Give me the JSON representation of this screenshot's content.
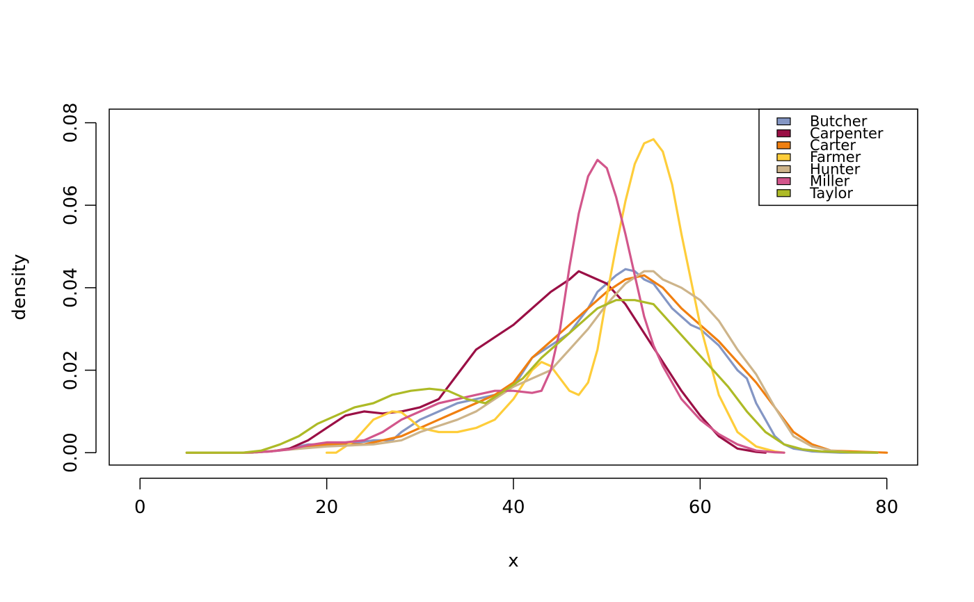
{
  "chart_data": {
    "type": "line",
    "title": "",
    "xlabel": "x",
    "ylabel": "density",
    "xlim": [
      -3.3,
      83.3
    ],
    "ylim": [
      -0.003,
      0.0833
    ],
    "x_ticks": [
      0,
      20,
      40,
      60,
      80
    ],
    "x_tick_labels": [
      "0",
      "20",
      "40",
      "60",
      "80"
    ],
    "y_ticks": [
      0.0,
      0.02,
      0.04,
      0.06,
      0.08
    ],
    "y_tick_labels": [
      "0.00",
      "0.02",
      "0.04",
      "0.06",
      "0.08"
    ],
    "grid": false,
    "legend_position": "top-right",
    "series": [
      {
        "name": "Butcher",
        "color": "#8496C4",
        "x": [
          5,
          12,
          15,
          18,
          20,
          22,
          25,
          27,
          28,
          30,
          32,
          34,
          36,
          38,
          40,
          42,
          44,
          46,
          48,
          49,
          50,
          51,
          52,
          53,
          54,
          55,
          56,
          57,
          58,
          59,
          60,
          61,
          62,
          63,
          64,
          65,
          66,
          67,
          68,
          69,
          70,
          72,
          75,
          79
        ],
        "y": [
          0,
          0,
          0.0005,
          0.002,
          0.002,
          0.002,
          0.003,
          0.003,
          0.005,
          0.008,
          0.01,
          0.012,
          0.013,
          0.014,
          0.016,
          0.023,
          0.026,
          0.029,
          0.035,
          0.039,
          0.041,
          0.043,
          0.0445,
          0.044,
          0.042,
          0.041,
          0.038,
          0.035,
          0.033,
          0.031,
          0.03,
          0.028,
          0.026,
          0.023,
          0.02,
          0.018,
          0.012,
          0.008,
          0.004,
          0.002,
          0.001,
          0.0003,
          0,
          0
        ]
      },
      {
        "name": "Carpenter",
        "color": "#9A0F45",
        "x": [
          5,
          11,
          14,
          16,
          18,
          20,
          22,
          24,
          26,
          28,
          30,
          32,
          34,
          36,
          38,
          40,
          42,
          44,
          46,
          47,
          48,
          50,
          52,
          54,
          56,
          58,
          60,
          62,
          64,
          66,
          67
        ],
        "y": [
          0,
          0,
          0.0003,
          0.001,
          0.003,
          0.006,
          0.009,
          0.01,
          0.0095,
          0.01,
          0.011,
          0.013,
          0.019,
          0.025,
          0.028,
          0.031,
          0.035,
          0.039,
          0.042,
          0.044,
          0.043,
          0.041,
          0.036,
          0.029,
          0.022,
          0.015,
          0.009,
          0.004,
          0.001,
          0.0002,
          0
        ]
      },
      {
        "name": "Carter",
        "color": "#F07F10",
        "x": [
          5,
          12,
          17,
          20,
          24,
          26,
          28,
          30,
          32,
          34,
          36,
          38,
          40,
          42,
          44,
          46,
          48,
          50,
          52,
          54,
          56,
          58,
          60,
          62,
          64,
          66,
          68,
          70,
          72,
          74,
          80
        ],
        "y": [
          0,
          0,
          0.001,
          0.002,
          0.002,
          0.003,
          0.004,
          0.006,
          0.008,
          0.01,
          0.012,
          0.014,
          0.017,
          0.023,
          0.027,
          0.031,
          0.035,
          0.039,
          0.042,
          0.043,
          0.04,
          0.035,
          0.031,
          0.027,
          0.022,
          0.017,
          0.011,
          0.005,
          0.002,
          0.0005,
          0
        ]
      },
      {
        "name": "Farmer",
        "color": "#FECD3A",
        "x": [
          20,
          21,
          23,
          25,
          27,
          28,
          29,
          30,
          32,
          34,
          36,
          38,
          40,
          42,
          43,
          44,
          45,
          46,
          47,
          48,
          49,
          50,
          51,
          52,
          53,
          54,
          55,
          56,
          57,
          58,
          60,
          62,
          64,
          66,
          68,
          69
        ],
        "y": [
          0,
          0,
          0.003,
          0.008,
          0.01,
          0.0098,
          0.008,
          0.006,
          0.005,
          0.005,
          0.006,
          0.008,
          0.013,
          0.02,
          0.022,
          0.021,
          0.018,
          0.015,
          0.014,
          0.017,
          0.025,
          0.038,
          0.05,
          0.061,
          0.07,
          0.075,
          0.076,
          0.073,
          0.065,
          0.053,
          0.031,
          0.014,
          0.005,
          0.0015,
          0.0003,
          0
        ]
      },
      {
        "name": "Hunter",
        "color": "#CDB48A",
        "x": [
          5,
          12,
          20,
          25,
          28,
          30,
          32,
          34,
          36,
          38,
          40,
          42,
          44,
          46,
          48,
          50,
          52,
          54,
          55,
          56,
          58,
          60,
          62,
          64,
          66,
          68,
          70,
          72,
          74,
          76,
          79
        ],
        "y": [
          0,
          0,
          0.0015,
          0.002,
          0.003,
          0.005,
          0.0065,
          0.008,
          0.01,
          0.013,
          0.016,
          0.018,
          0.02,
          0.025,
          0.03,
          0.036,
          0.041,
          0.044,
          0.044,
          0.042,
          0.04,
          0.037,
          0.032,
          0.025,
          0.019,
          0.011,
          0.004,
          0.0015,
          0.0005,
          0.0001,
          0
        ]
      },
      {
        "name": "Miller",
        "color": "#D2568B",
        "x": [
          11,
          14,
          16,
          18,
          20,
          22,
          24,
          26,
          28,
          30,
          32,
          34,
          36,
          38,
          40,
          42,
          43,
          44,
          45,
          46,
          47,
          48,
          49,
          50,
          51,
          52,
          53,
          54,
          55,
          56,
          58,
          60,
          62,
          64,
          66,
          68,
          69
        ],
        "y": [
          0,
          0.0003,
          0.0008,
          0.0018,
          0.0025,
          0.0025,
          0.003,
          0.005,
          0.008,
          0.01,
          0.012,
          0.013,
          0.014,
          0.015,
          0.015,
          0.0145,
          0.015,
          0.02,
          0.03,
          0.045,
          0.058,
          0.067,
          0.071,
          0.069,
          0.062,
          0.053,
          0.043,
          0.033,
          0.026,
          0.021,
          0.013,
          0.008,
          0.0045,
          0.002,
          0.0005,
          0.0001,
          0
        ]
      },
      {
        "name": "Taylor",
        "color": "#ADBA26",
        "x": [
          5,
          11,
          13,
          15,
          17,
          19,
          21,
          23,
          25,
          27,
          29,
          31,
          33,
          35,
          37,
          39,
          41,
          43,
          45,
          47,
          49,
          51,
          53,
          55,
          57,
          59,
          61,
          63,
          65,
          67,
          69,
          71,
          73,
          76,
          79
        ],
        "y": [
          0,
          0,
          0.0005,
          0.002,
          0.004,
          0.007,
          0.009,
          0.011,
          0.012,
          0.014,
          0.015,
          0.0155,
          0.015,
          0.013,
          0.012,
          0.015,
          0.018,
          0.023,
          0.027,
          0.031,
          0.035,
          0.037,
          0.037,
          0.036,
          0.031,
          0.026,
          0.021,
          0.016,
          0.01,
          0.005,
          0.002,
          0.0008,
          0.0003,
          0.0001,
          0
        ]
      }
    ]
  }
}
